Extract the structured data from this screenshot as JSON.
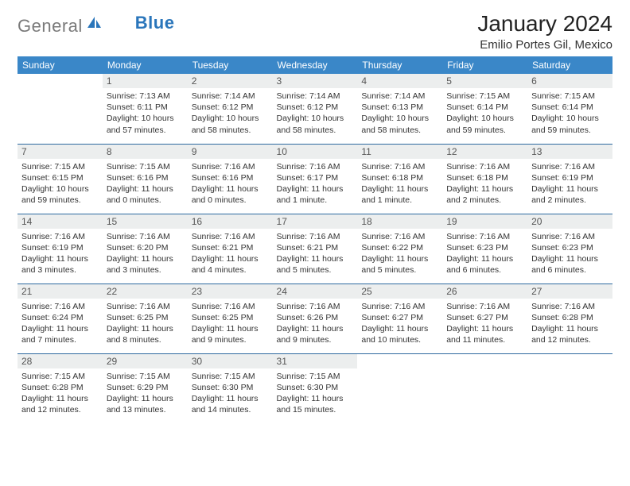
{
  "logo": {
    "gray": "General",
    "blue": "Blue"
  },
  "title": "January 2024",
  "location": "Emilio Portes Gil, Mexico",
  "colors": {
    "header_bg": "#3a87c8",
    "header_fg": "#ffffff",
    "daynum_bg": "#eceeee",
    "row_divider": "#2e6aa0",
    "logo_gray": "#7a7a7a",
    "logo_blue": "#2a76bb"
  },
  "weekdays": [
    "Sunday",
    "Monday",
    "Tuesday",
    "Wednesday",
    "Thursday",
    "Friday",
    "Saturday"
  ],
  "weeks": [
    [
      {
        "n": "",
        "sr": "",
        "ss": "",
        "dl": ""
      },
      {
        "n": "1",
        "sr": "Sunrise: 7:13 AM",
        "ss": "Sunset: 6:11 PM",
        "dl": "Daylight: 10 hours and 57 minutes."
      },
      {
        "n": "2",
        "sr": "Sunrise: 7:14 AM",
        "ss": "Sunset: 6:12 PM",
        "dl": "Daylight: 10 hours and 58 minutes."
      },
      {
        "n": "3",
        "sr": "Sunrise: 7:14 AM",
        "ss": "Sunset: 6:12 PM",
        "dl": "Daylight: 10 hours and 58 minutes."
      },
      {
        "n": "4",
        "sr": "Sunrise: 7:14 AM",
        "ss": "Sunset: 6:13 PM",
        "dl": "Daylight: 10 hours and 58 minutes."
      },
      {
        "n": "5",
        "sr": "Sunrise: 7:15 AM",
        "ss": "Sunset: 6:14 PM",
        "dl": "Daylight: 10 hours and 59 minutes."
      },
      {
        "n": "6",
        "sr": "Sunrise: 7:15 AM",
        "ss": "Sunset: 6:14 PM",
        "dl": "Daylight: 10 hours and 59 minutes."
      }
    ],
    [
      {
        "n": "7",
        "sr": "Sunrise: 7:15 AM",
        "ss": "Sunset: 6:15 PM",
        "dl": "Daylight: 10 hours and 59 minutes."
      },
      {
        "n": "8",
        "sr": "Sunrise: 7:15 AM",
        "ss": "Sunset: 6:16 PM",
        "dl": "Daylight: 11 hours and 0 minutes."
      },
      {
        "n": "9",
        "sr": "Sunrise: 7:16 AM",
        "ss": "Sunset: 6:16 PM",
        "dl": "Daylight: 11 hours and 0 minutes."
      },
      {
        "n": "10",
        "sr": "Sunrise: 7:16 AM",
        "ss": "Sunset: 6:17 PM",
        "dl": "Daylight: 11 hours and 1 minute."
      },
      {
        "n": "11",
        "sr": "Sunrise: 7:16 AM",
        "ss": "Sunset: 6:18 PM",
        "dl": "Daylight: 11 hours and 1 minute."
      },
      {
        "n": "12",
        "sr": "Sunrise: 7:16 AM",
        "ss": "Sunset: 6:18 PM",
        "dl": "Daylight: 11 hours and 2 minutes."
      },
      {
        "n": "13",
        "sr": "Sunrise: 7:16 AM",
        "ss": "Sunset: 6:19 PM",
        "dl": "Daylight: 11 hours and 2 minutes."
      }
    ],
    [
      {
        "n": "14",
        "sr": "Sunrise: 7:16 AM",
        "ss": "Sunset: 6:19 PM",
        "dl": "Daylight: 11 hours and 3 minutes."
      },
      {
        "n": "15",
        "sr": "Sunrise: 7:16 AM",
        "ss": "Sunset: 6:20 PM",
        "dl": "Daylight: 11 hours and 3 minutes."
      },
      {
        "n": "16",
        "sr": "Sunrise: 7:16 AM",
        "ss": "Sunset: 6:21 PM",
        "dl": "Daylight: 11 hours and 4 minutes."
      },
      {
        "n": "17",
        "sr": "Sunrise: 7:16 AM",
        "ss": "Sunset: 6:21 PM",
        "dl": "Daylight: 11 hours and 5 minutes."
      },
      {
        "n": "18",
        "sr": "Sunrise: 7:16 AM",
        "ss": "Sunset: 6:22 PM",
        "dl": "Daylight: 11 hours and 5 minutes."
      },
      {
        "n": "19",
        "sr": "Sunrise: 7:16 AM",
        "ss": "Sunset: 6:23 PM",
        "dl": "Daylight: 11 hours and 6 minutes."
      },
      {
        "n": "20",
        "sr": "Sunrise: 7:16 AM",
        "ss": "Sunset: 6:23 PM",
        "dl": "Daylight: 11 hours and 6 minutes."
      }
    ],
    [
      {
        "n": "21",
        "sr": "Sunrise: 7:16 AM",
        "ss": "Sunset: 6:24 PM",
        "dl": "Daylight: 11 hours and 7 minutes."
      },
      {
        "n": "22",
        "sr": "Sunrise: 7:16 AM",
        "ss": "Sunset: 6:25 PM",
        "dl": "Daylight: 11 hours and 8 minutes."
      },
      {
        "n": "23",
        "sr": "Sunrise: 7:16 AM",
        "ss": "Sunset: 6:25 PM",
        "dl": "Daylight: 11 hours and 9 minutes."
      },
      {
        "n": "24",
        "sr": "Sunrise: 7:16 AM",
        "ss": "Sunset: 6:26 PM",
        "dl": "Daylight: 11 hours and 9 minutes."
      },
      {
        "n": "25",
        "sr": "Sunrise: 7:16 AM",
        "ss": "Sunset: 6:27 PM",
        "dl": "Daylight: 11 hours and 10 minutes."
      },
      {
        "n": "26",
        "sr": "Sunrise: 7:16 AM",
        "ss": "Sunset: 6:27 PM",
        "dl": "Daylight: 11 hours and 11 minutes."
      },
      {
        "n": "27",
        "sr": "Sunrise: 7:16 AM",
        "ss": "Sunset: 6:28 PM",
        "dl": "Daylight: 11 hours and 12 minutes."
      }
    ],
    [
      {
        "n": "28",
        "sr": "Sunrise: 7:15 AM",
        "ss": "Sunset: 6:28 PM",
        "dl": "Daylight: 11 hours and 12 minutes."
      },
      {
        "n": "29",
        "sr": "Sunrise: 7:15 AM",
        "ss": "Sunset: 6:29 PM",
        "dl": "Daylight: 11 hours and 13 minutes."
      },
      {
        "n": "30",
        "sr": "Sunrise: 7:15 AM",
        "ss": "Sunset: 6:30 PM",
        "dl": "Daylight: 11 hours and 14 minutes."
      },
      {
        "n": "31",
        "sr": "Sunrise: 7:15 AM",
        "ss": "Sunset: 6:30 PM",
        "dl": "Daylight: 11 hours and 15 minutes."
      },
      {
        "n": "",
        "sr": "",
        "ss": "",
        "dl": ""
      },
      {
        "n": "",
        "sr": "",
        "ss": "",
        "dl": ""
      },
      {
        "n": "",
        "sr": "",
        "ss": "",
        "dl": ""
      }
    ]
  ]
}
